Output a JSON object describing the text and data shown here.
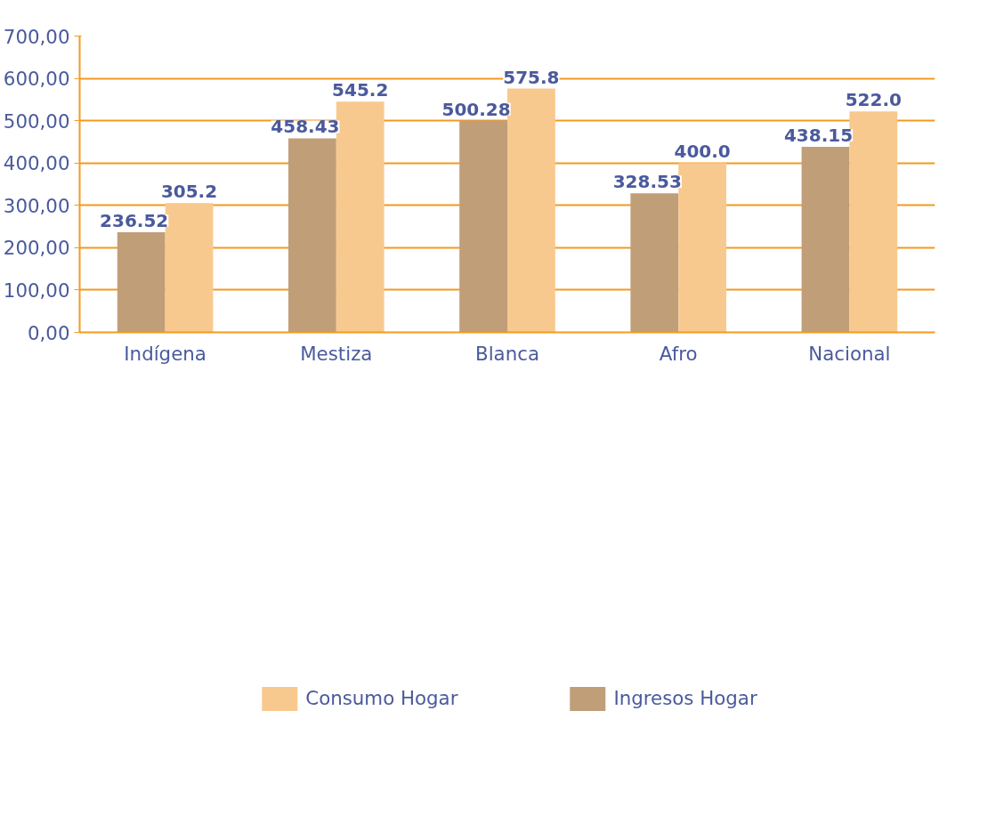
{
  "chart_data": {
    "type": "bar",
    "categories": [
      "Indígena",
      "Mestiza",
      "Blanca",
      "Afro",
      "Nacional"
    ],
    "series": [
      {
        "name": "Ingresos Hogar",
        "color": "#bf9e78",
        "values": [
          236.52,
          458.43,
          500.28,
          328.53,
          438.15
        ],
        "value_labels": [
          "236.52",
          "458.43",
          "500.28",
          "328.53",
          "438.15"
        ]
      },
      {
        "name": "Consumo Hogar",
        "color": "#f8c98e",
        "values": [
          305.2,
          545.2,
          575.8,
          400.0,
          522.0
        ],
        "value_labels": [
          "305.2",
          "545.2",
          "575.8",
          "400.0",
          "522.0"
        ]
      }
    ],
    "ylim": [
      0,
      700
    ],
    "yticks": [
      {
        "value": 0,
        "label": "0,00"
      },
      {
        "value": 100,
        "label": "100,00"
      },
      {
        "value": 200,
        "label": "200,00"
      },
      {
        "value": 300,
        "label": "300,00"
      },
      {
        "value": 400,
        "label": "400,00"
      },
      {
        "value": 500,
        "label": "500,00"
      },
      {
        "value": 600,
        "label": "600,00"
      },
      {
        "value": 700,
        "label": "700,00"
      }
    ],
    "grid": "y",
    "legend": "bottom"
  }
}
